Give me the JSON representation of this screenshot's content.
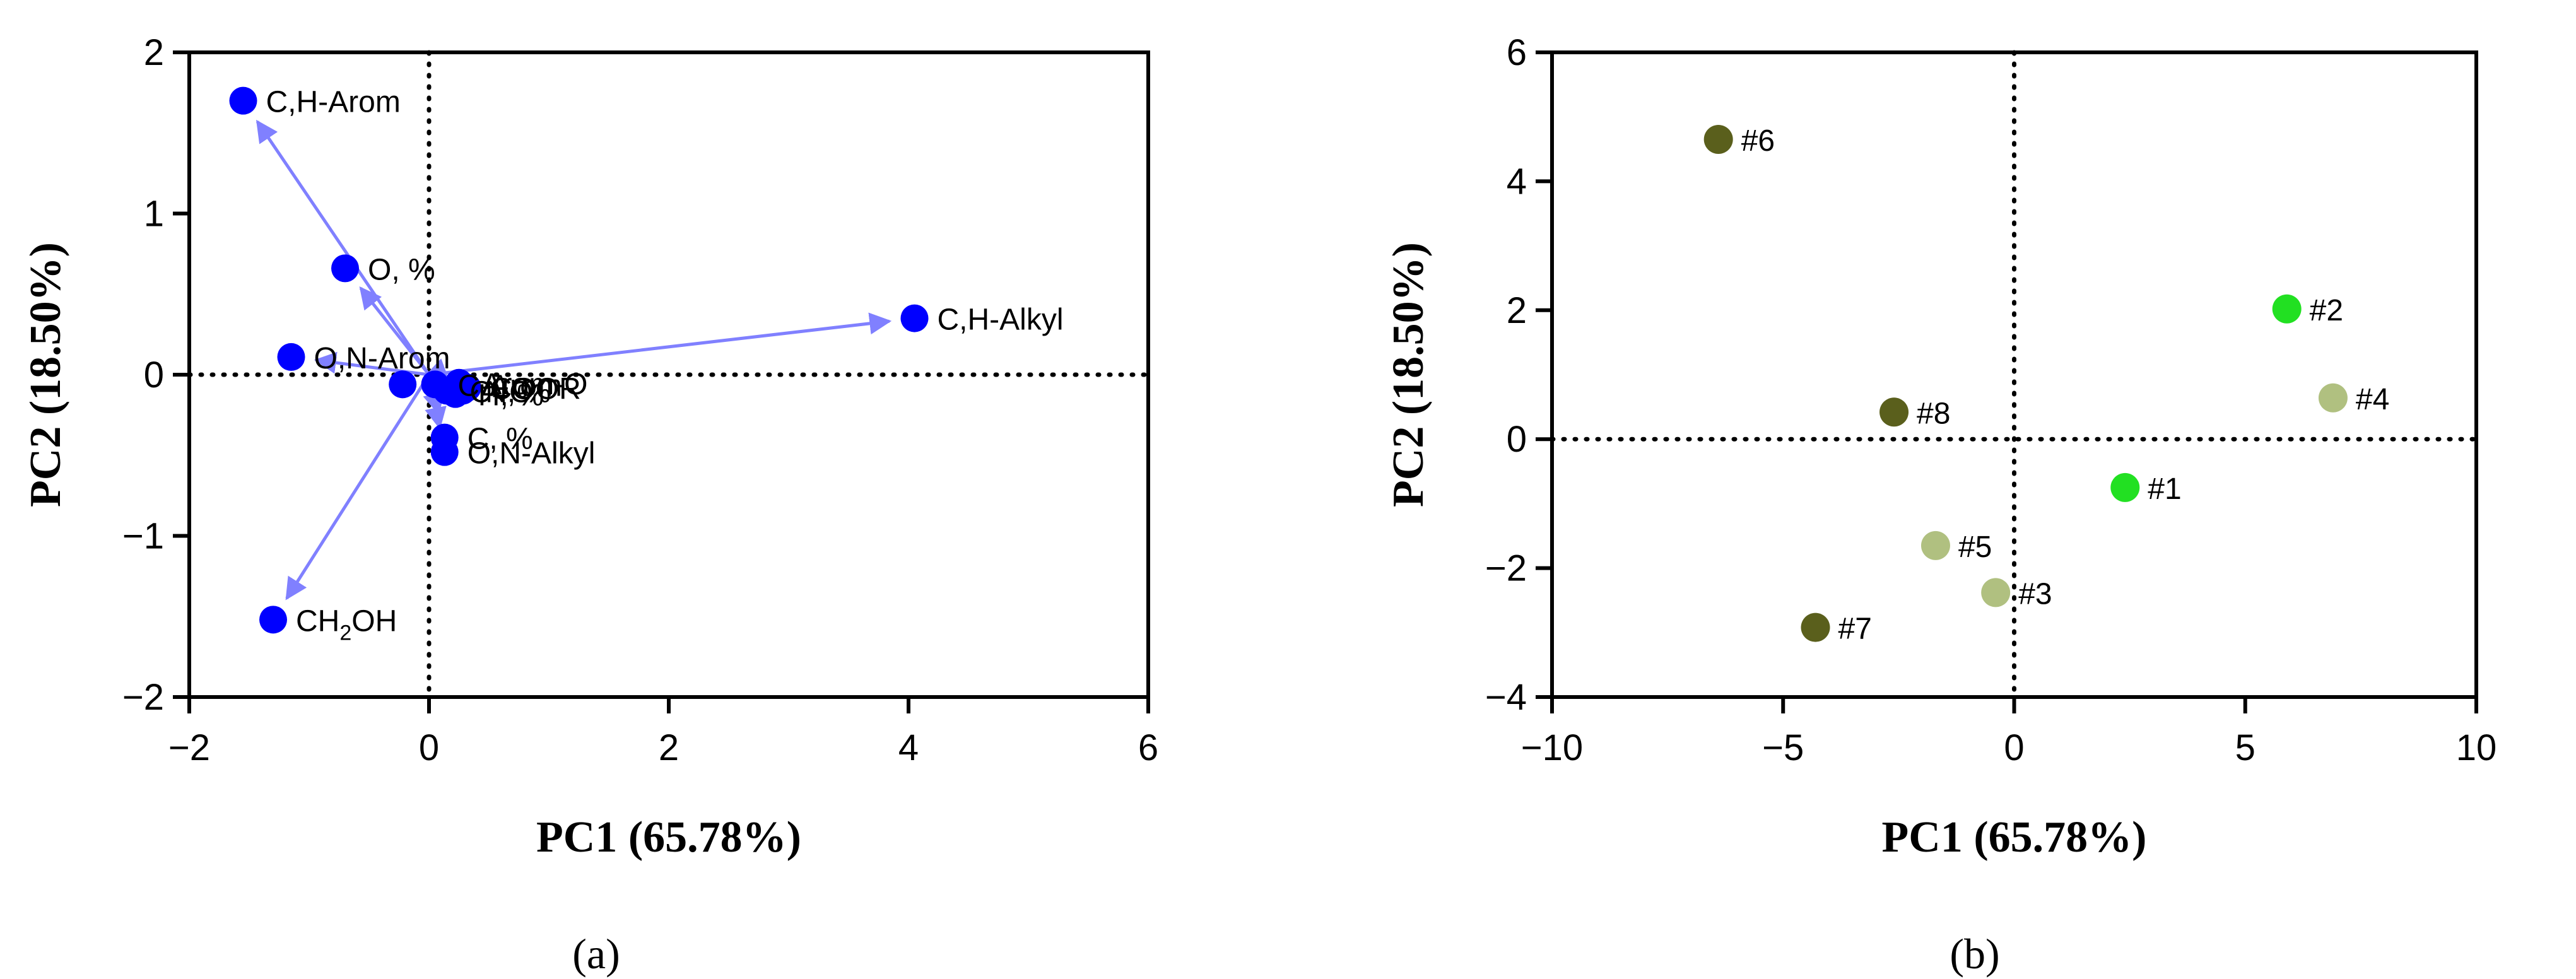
{
  "chart_data": [
    {
      "type": "scatter",
      "panel": "(a)",
      "xlabel": "PC1 (65.78%)",
      "ylabel": "PC2 (18.50%)",
      "xlim": [
        -2,
        6
      ],
      "ylim": [
        -2,
        2
      ],
      "xticks": [
        -2,
        0,
        2,
        4,
        6
      ],
      "yticks": [
        -2,
        -1,
        0,
        1,
        2
      ],
      "xtick_labels": [
        "−2",
        "0",
        "2",
        "4",
        "6"
      ],
      "ytick_labels": [
        "−2",
        "−1",
        "0",
        "1",
        "2"
      ],
      "reference_lines": {
        "x": 0,
        "y": 0,
        "style": "dotted"
      },
      "point_color": "#0000ff",
      "arrow_color": "#8080ff",
      "points": [
        {
          "label": "C,H-Arom",
          "x": -1.55,
          "y": 1.7,
          "arrow": true
        },
        {
          "label": "O, %",
          "x": -0.7,
          "y": 0.66,
          "arrow": true
        },
        {
          "label": "O,N-Arom",
          "x": -1.15,
          "y": 0.11,
          "arrow": true
        },
        {
          "label": "C,H-Alkyl",
          "x": 4.05,
          "y": 0.35,
          "arrow": true
        },
        {
          "label": "CH2OH",
          "x": -1.3,
          "y": -1.52,
          "arrow": true
        },
        {
          "label": "C, %",
          "x": 0.13,
          "y": -0.39,
          "arrow": true
        },
        {
          "label": "O,N-Alkyl",
          "x": 0.13,
          "y": -0.48,
          "arrow": true
        },
        {
          "label": "",
          "x": -0.22,
          "y": -0.06,
          "arrow": true
        },
        {
          "label": "C-Arom",
          "x": 0.05,
          "y": -0.06,
          "arrow": false
        },
        {
          "label": "C=O",
          "x": 0.15,
          "y": -0.1,
          "arrow": false
        },
        {
          "label": "H, %",
          "x": 0.22,
          "y": -0.12,
          "arrow": false
        },
        {
          "label": "N, %",
          "x": 0.28,
          "y": -0.1,
          "arrow": false
        },
        {
          "label": "COOR",
          "x": 0.32,
          "y": -0.08,
          "arrow": false
        },
        {
          "label": "Arom-O",
          "x": 0.25,
          "y": -0.05,
          "arrow": false
        }
      ]
    },
    {
      "type": "scatter",
      "panel": "(b)",
      "xlabel": "PC1 (65.78%)",
      "ylabel": "PC2 (18.50%)",
      "xlim": [
        -10,
        10
      ],
      "ylim": [
        -4,
        6
      ],
      "xticks": [
        -10,
        -5,
        0,
        5,
        10
      ],
      "yticks": [
        -4,
        -2,
        0,
        2,
        4,
        6
      ],
      "xtick_labels": [
        "−10",
        "−5",
        "0",
        "5",
        "10"
      ],
      "ytick_labels": [
        "−4",
        "−2",
        "0",
        "2",
        "4",
        "6"
      ],
      "reference_lines": {
        "x": 0,
        "y": 0,
        "style": "dotted"
      },
      "points": [
        {
          "label": "#1",
          "x": 2.4,
          "y": -0.75,
          "color": "#22e022"
        },
        {
          "label": "#2",
          "x": 5.9,
          "y": 2.02,
          "color": "#22e022"
        },
        {
          "label": "#3",
          "x": -0.4,
          "y": -2.38,
          "color": "#b0c080"
        },
        {
          "label": "#4",
          "x": 6.9,
          "y": 0.64,
          "color": "#b0c080"
        },
        {
          "label": "#5",
          "x": -1.7,
          "y": -1.65,
          "color": "#b0c080"
        },
        {
          "label": "#6",
          "x": -6.4,
          "y": 4.65,
          "color": "#5a5f1c"
        },
        {
          "label": "#7",
          "x": -4.3,
          "y": -2.92,
          "color": "#5a5f1c"
        },
        {
          "label": "#8",
          "x": -2.6,
          "y": 0.42,
          "color": "#5a5f1c"
        }
      ]
    }
  ]
}
